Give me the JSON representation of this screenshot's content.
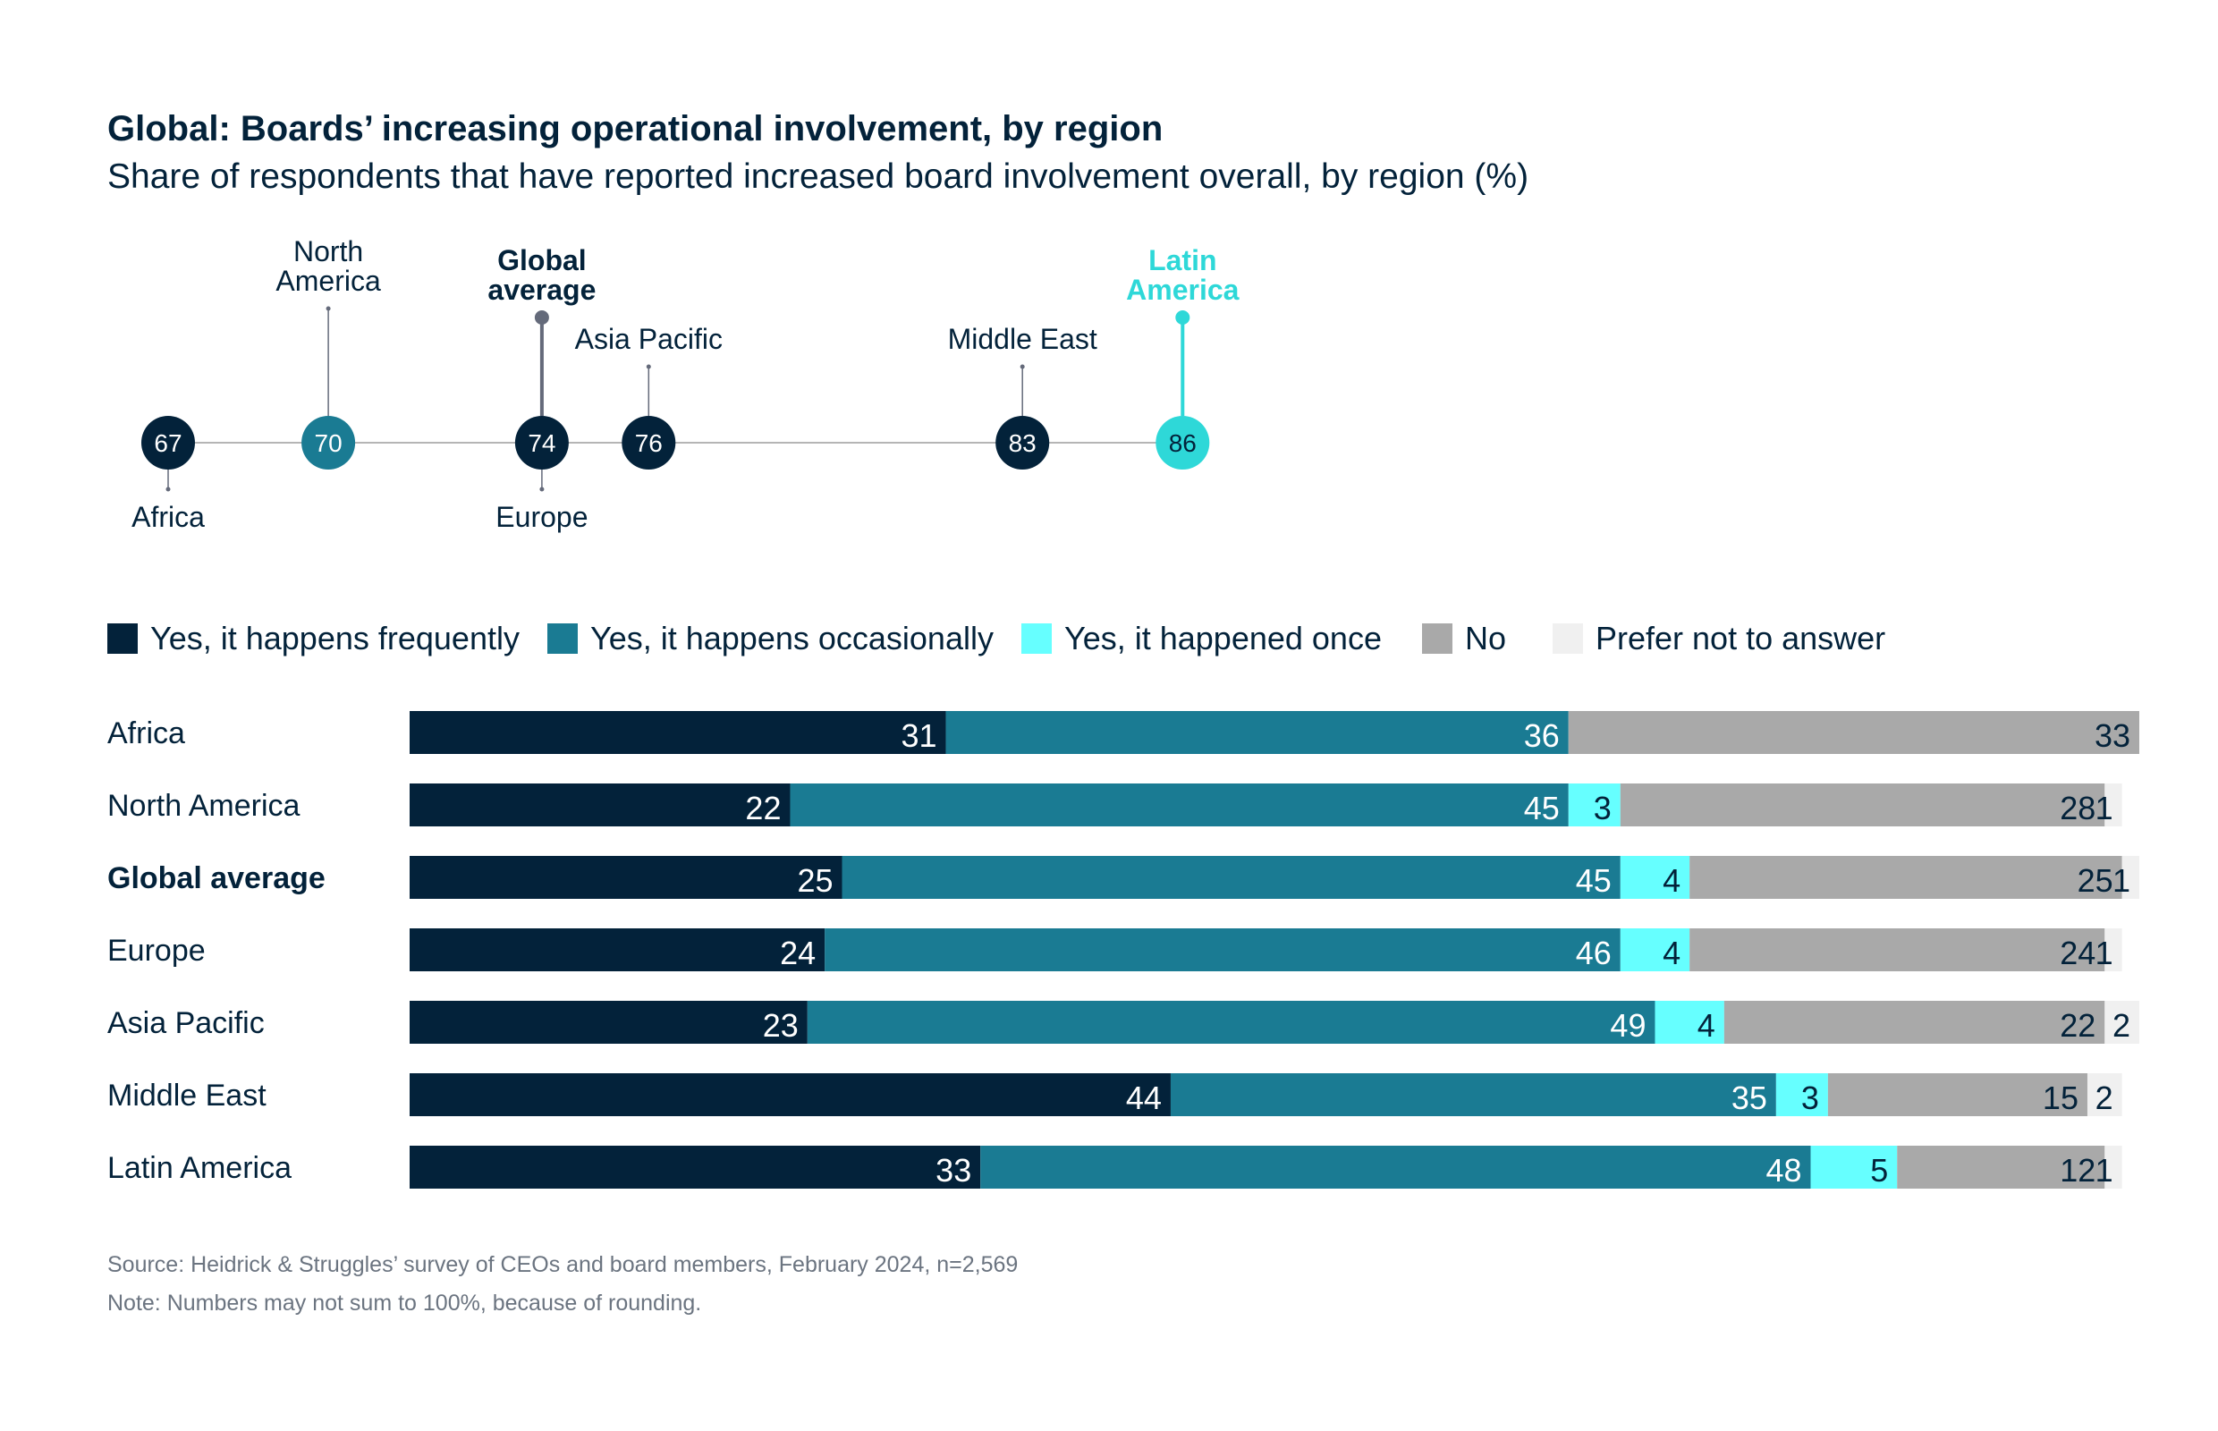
{
  "title": "Global: Boards’ increasing operational involvement, by region",
  "subtitle": "Share of respondents that have reported increased board involvement overall, by region (%)",
  "colors": {
    "frequently": "#03223a",
    "occasionally": "#1a7b93",
    "once": "#66ffff",
    "no": "#a9a9a9",
    "prefer_not": "#f0f0f0",
    "highlight": "#2ed8d8",
    "global_stem": "#646a7a",
    "axis": "#b5b5b5"
  },
  "chart_data": [
    {
      "type": "scatter",
      "title": "",
      "points": [
        {
          "label": "Africa",
          "value": 67,
          "label_position": "below",
          "color": "#03223a"
        },
        {
          "label": "North America",
          "value": 70,
          "label_position": "above",
          "color": "#1a7b93"
        },
        {
          "label": "Global average",
          "value": 74,
          "label_position": "above",
          "color": "#03223a",
          "bold": true
        },
        {
          "label": "Europe",
          "value": 74,
          "label_position": "below",
          "color": "#03223a"
        },
        {
          "label": "Asia Pacific",
          "value": 76,
          "label_position": "above",
          "color": "#03223a"
        },
        {
          "label": "Middle East",
          "value": 83,
          "label_position": "above",
          "color": "#03223a"
        },
        {
          "label": "Latin America",
          "value": 86,
          "label_position": "above",
          "color": "#2ed8d8",
          "highlight": true
        }
      ]
    },
    {
      "type": "bar",
      "orientation": "horizontal",
      "stacked": true,
      "legend_position": "top-left",
      "categories": [
        "Africa",
        "North America",
        "Global average",
        "Europe",
        "Asia Pacific",
        "Middle East",
        "Latin America"
      ],
      "series": [
        {
          "name": "Yes, it happens frequently",
          "values": [
            31,
            22,
            25,
            24,
            23,
            44,
            33
          ]
        },
        {
          "name": "Yes, it happens occasionally",
          "values": [
            36,
            45,
            45,
            46,
            49,
            35,
            48
          ]
        },
        {
          "name": "Yes, it happened once",
          "values": [
            null,
            3,
            4,
            4,
            4,
            3,
            5
          ]
        },
        {
          "name": "No",
          "values": [
            33,
            28,
            25,
            24,
            22,
            15,
            12
          ]
        },
        {
          "name": "Prefer not to answer",
          "values": [
            null,
            1,
            1,
            1,
            2,
            2,
            1
          ]
        }
      ]
    }
  ],
  "footer": {
    "source": "Source: Heidrick & Struggles’ survey of CEOs and board members, February 2024, n=2,569",
    "note": "Note: Numbers may not sum to 100%, because of rounding."
  }
}
